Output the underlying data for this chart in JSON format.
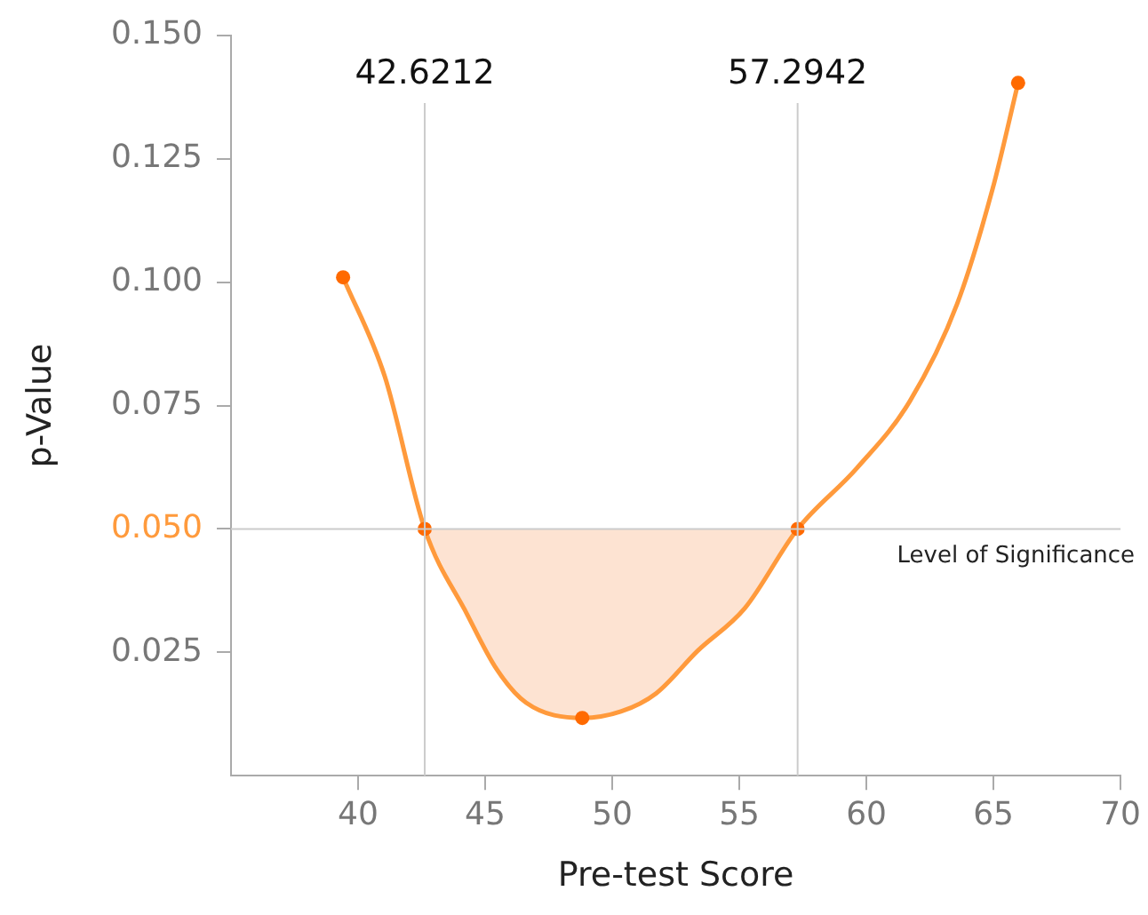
{
  "chart_data": {
    "type": "line",
    "xlabel": "Pre-test Score",
    "ylabel": "p-Value",
    "xlim": [
      35,
      70
    ],
    "xticks": [
      40,
      45,
      50,
      55,
      60,
      65,
      70
    ],
    "ylim": [
      0,
      0.15
    ],
    "yticks": [
      {
        "value": 0.025,
        "label": "0.025"
      },
      {
        "value": 0.05,
        "label": "0.050"
      },
      {
        "value": 0.075,
        "label": "0.075"
      },
      {
        "value": 0.1,
        "label": "0.100"
      },
      {
        "value": 0.125,
        "label": "0.125"
      },
      {
        "value": 0.15,
        "label": "0.150"
      }
    ],
    "grid": false,
    "legend": false,
    "series": [
      {
        "type": "area",
        "color": "#fde3d2",
        "x": [
          42.6212,
          44.29,
          45.45,
          46.61,
          48.82,
          50.34,
          51.73,
          53.36,
          55.21,
          57.2942
        ],
        "values": [
          0.05,
          0.0327,
          0.0216,
          0.0148,
          0.0117,
          0.013,
          0.0167,
          0.0253,
          0.0339,
          0.05
        ]
      },
      {
        "color": "#ff9a3c",
        "marker": "none",
        "x": [
          39.41,
          41.05,
          42.6212,
          44.29,
          45.45,
          46.61,
          48.82,
          50.34,
          51.73,
          53.36,
          55.21,
          57.2942,
          59.62,
          61.71,
          63.57,
          64.97,
          65.97
        ],
        "values": [
          0.101,
          0.0809,
          0.05,
          0.0327,
          0.0216,
          0.0148,
          0.0117,
          0.013,
          0.0167,
          0.0253,
          0.0339,
          0.05,
          0.0623,
          0.0759,
          0.0956,
          0.119,
          0.1404
        ]
      },
      {
        "type": "scatter",
        "color": "#ff6a00",
        "marker": "circle",
        "x": [
          39.41,
          42.6212,
          48.82,
          57.2942,
          65.97
        ],
        "values": [
          0.101,
          0.05,
          0.0117,
          0.05,
          0.1404
        ]
      }
    ],
    "ref_lines": [
      {
        "axis": "x",
        "value": 42.6212,
        "label": "42.6212",
        "color": "#cccccc"
      },
      {
        "axis": "x",
        "value": 57.2942,
        "label": "57.2942",
        "color": "#cccccc"
      },
      {
        "axis": "y",
        "value": 0.05,
        "label": "Level of Significance",
        "color": "#cccccc"
      }
    ]
  }
}
